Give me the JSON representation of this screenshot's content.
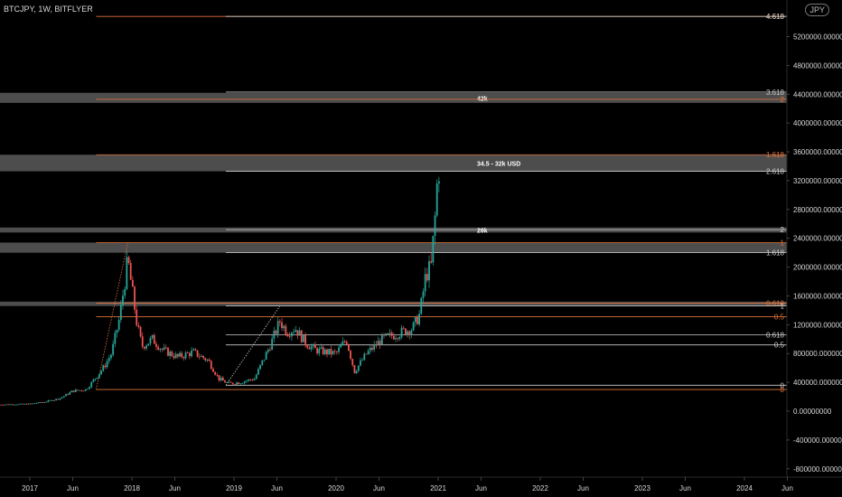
{
  "header": {
    "symbol_label": "BTCJPY, 1W, BITFLYER"
  },
  "currency_button": "JPY",
  "chart_data": {
    "type": "candlestick",
    "title": "BTCJPY, 1W, BITFLYER",
    "x_ticks": [
      {
        "t": 2017.0,
        "label": "2017"
      },
      {
        "t": 2017.42,
        "label": "Jun"
      },
      {
        "t": 2018.0,
        "label": "2018"
      },
      {
        "t": 2018.42,
        "label": "Jun"
      },
      {
        "t": 2019.0,
        "label": "2019"
      },
      {
        "t": 2019.42,
        "label": "Jun"
      },
      {
        "t": 2020.0,
        "label": "2020"
      },
      {
        "t": 2020.42,
        "label": "Jun"
      },
      {
        "t": 2021.0,
        "label": "2021"
      },
      {
        "t": 2021.42,
        "label": "Jun"
      },
      {
        "t": 2022.0,
        "label": "2022"
      },
      {
        "t": 2022.42,
        "label": "Jun"
      },
      {
        "t": 2023.0,
        "label": "2023"
      },
      {
        "t": 2023.42,
        "label": "Jun"
      },
      {
        "t": 2024.0,
        "label": "2024"
      },
      {
        "t": 2024.42,
        "label": "Jun"
      }
    ],
    "y_ticks": [
      {
        "v": 5200000,
        "label": "5200000.00000000"
      },
      {
        "v": 4800000,
        "label": "4800000.00000000"
      },
      {
        "v": 4400000,
        "label": "4400000.00000000"
      },
      {
        "v": 4000000,
        "label": "4000000.00000000"
      },
      {
        "v": 3600000,
        "label": "3600000.00000000"
      },
      {
        "v": 3200000,
        "label": "3200000.00000000"
      },
      {
        "v": 2800000,
        "label": "2800000.00000000"
      },
      {
        "v": 2400000,
        "label": "2400000.00000000"
      },
      {
        "v": 2000000,
        "label": "2000000.00000000"
      },
      {
        "v": 1600000,
        "label": "1600000.00000000"
      },
      {
        "v": 1200000,
        "label": "1200000.00000000"
      },
      {
        "v": 800000,
        "label": "800000.00000000"
      },
      {
        "v": 400000,
        "label": "400000.00000000"
      },
      {
        "v": 0,
        "label": "0.00000000"
      },
      {
        "v": -400000,
        "label": "-400000.00000000"
      },
      {
        "v": -800000,
        "label": "-800000.00000000"
      }
    ],
    "ylim": [
      -880000,
      5550000
    ],
    "xlim": [
      2016.7,
      2024.8
    ],
    "fib_levels": [
      {
        "v": 5480000,
        "label": "4.618",
        "color": "#e0733a",
        "x_start": 2017.65
      },
      {
        "v": 5480000,
        "label": "4.618",
        "color": "#cccccc",
        "x_start": 2018.92
      },
      {
        "v": 4430000,
        "label": "3.618",
        "color": "#cccccc",
        "x_start": 2018.92
      },
      {
        "v": 4330000,
        "label": "2",
        "color": "#e0733a",
        "x_start": 2017.65
      },
      {
        "v": 3560000,
        "label": "1.618",
        "color": "#e0733a",
        "x_start": 2017.65
      },
      {
        "v": 3330000,
        "label": "2.618",
        "color": "#cccccc",
        "x_start": 2018.92
      },
      {
        "v": 2520000,
        "label": "2",
        "color": "#cccccc",
        "x_start": 2018.92
      },
      {
        "v": 2340000,
        "label": "1",
        "color": "#e0733a",
        "x_start": 2017.65
      },
      {
        "v": 2200000,
        "label": "1.618",
        "color": "#cccccc",
        "x_start": 2018.92
      },
      {
        "v": 1500000,
        "label": "0.618",
        "color": "#e0733a",
        "x_start": 2017.65
      },
      {
        "v": 1460000,
        "label": "1",
        "color": "#cccccc",
        "x_start": 2018.92
      },
      {
        "v": 1310000,
        "label": "0.5",
        "color": "#e0733a",
        "x_start": 2017.65
      },
      {
        "v": 1060000,
        "label": "0.618",
        "color": "#cccccc",
        "x_start": 2018.92
      },
      {
        "v": 920000,
        "label": "0.5",
        "color": "#cccccc",
        "x_start": 2018.92
      },
      {
        "v": 360000,
        "label": "0",
        "color": "#cccccc",
        "x_start": 2018.92
      },
      {
        "v": 300000,
        "label": "0",
        "color": "#e0733a",
        "x_start": 2017.65
      }
    ],
    "zones": [
      {
        "v_top": 4420000,
        "v_bottom": 4280000,
        "label": "42k"
      },
      {
        "v_top": 3560000,
        "v_bottom": 3330000,
        "label": "34.5 - 32k USD"
      },
      {
        "v_top": 2550000,
        "v_bottom": 2480000,
        "label": "26k"
      },
      {
        "v_top": 2340000,
        "v_bottom": 2200000,
        "label": ""
      },
      {
        "v_top": 1520000,
        "v_bottom": 1460000,
        "label": ""
      }
    ],
    "price_path": [
      [
        2016.7,
        90000
      ],
      [
        2016.85,
        95000
      ],
      [
        2017.0,
        100000
      ],
      [
        2017.15,
        130000
      ],
      [
        2017.3,
        180000
      ],
      [
        2017.42,
        280000
      ],
      [
        2017.55,
        300000
      ],
      [
        2017.62,
        420000
      ],
      [
        2017.72,
        600000
      ],
      [
        2017.8,
        800000
      ],
      [
        2017.88,
        1300000
      ],
      [
        2017.96,
        2100000
      ],
      [
        2018.0,
        1700000
      ],
      [
        2018.05,
        1200000
      ],
      [
        2018.1,
        900000
      ],
      [
        2018.2,
        1000000
      ],
      [
        2018.3,
        850000
      ],
      [
        2018.45,
        750000
      ],
      [
        2018.6,
        820000
      ],
      [
        2018.75,
        700000
      ],
      [
        2018.85,
        450000
      ],
      [
        2018.95,
        380000
      ],
      [
        2019.05,
        400000
      ],
      [
        2019.2,
        450000
      ],
      [
        2019.35,
        900000
      ],
      [
        2019.45,
        1250000
      ],
      [
        2019.52,
        1100000
      ],
      [
        2019.6,
        1150000
      ],
      [
        2019.7,
        950000
      ],
      [
        2019.8,
        850000
      ],
      [
        2019.9,
        820000
      ],
      [
        2020.0,
        800000
      ],
      [
        2020.1,
        1000000
      ],
      [
        2020.18,
        550000
      ],
      [
        2020.3,
        800000
      ],
      [
        2020.45,
        1000000
      ],
      [
        2020.55,
        1050000
      ],
      [
        2020.65,
        1100000
      ],
      [
        2020.75,
        1150000
      ],
      [
        2020.82,
        1350000
      ],
      [
        2020.88,
        1900000
      ],
      [
        2020.93,
        2000000
      ],
      [
        2020.97,
        2700000
      ],
      [
        2021.0,
        3400000
      ],
      [
        2021.02,
        3300000
      ]
    ]
  }
}
